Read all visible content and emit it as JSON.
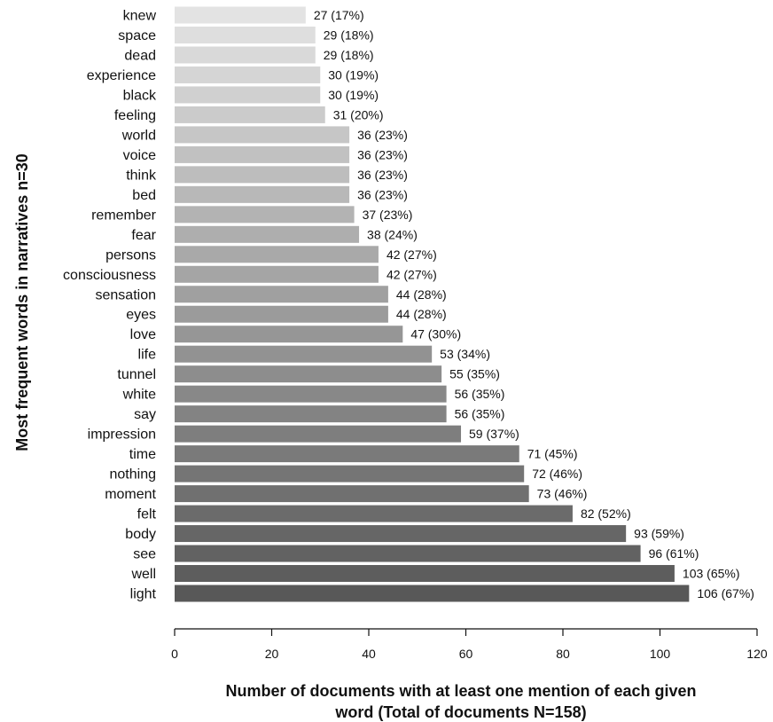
{
  "chart_data": {
    "type": "bar",
    "orientation": "horizontal",
    "categories": [
      "knew",
      "space",
      "dead",
      "experience",
      "black",
      "feeling",
      "world",
      "voice",
      "think",
      "bed",
      "remember",
      "fear",
      "persons",
      "consciousness",
      "sensation",
      "eyes",
      "love",
      "life",
      "tunnel",
      "white",
      "say",
      "impression",
      "time",
      "nothing",
      "moment",
      "felt",
      "body",
      "see",
      "well",
      "light"
    ],
    "values": [
      27,
      29,
      29,
      30,
      30,
      31,
      36,
      36,
      36,
      36,
      37,
      38,
      42,
      42,
      44,
      44,
      47,
      53,
      55,
      56,
      56,
      59,
      71,
      72,
      73,
      82,
      93,
      96,
      103,
      106
    ],
    "value_labels": [
      "27",
      "29",
      "29",
      "30",
      "30",
      "31",
      "36",
      "36",
      "36",
      "36",
      "37",
      "38",
      "42",
      "42",
      "44",
      "44",
      "47",
      "53",
      "55",
      "56",
      "56",
      "59",
      "71",
      "72",
      "73",
      "82",
      "93",
      "96",
      "103",
      "106"
    ],
    "percent_labels": [
      "(17%)",
      "(18%)",
      "(18%)",
      "(19%)",
      "(19%)",
      "(20%)",
      "(23%)",
      "(23%)",
      "(23%)",
      "(23%)",
      "(23%)",
      "(24%)",
      "(27%)",
      "(27%)",
      "(28%)",
      "(28%)",
      "(30%)",
      "(34%)",
      "(35%)",
      "(35%)",
      "(35%)",
      "(37%)",
      "(45%)",
      "(46%)",
      "(46%)",
      "(52%)",
      "(59%)",
      "(61%)",
      "(65%)",
      "(67%)"
    ],
    "xlim": [
      0,
      120
    ],
    "xticks": [
      "0",
      "20",
      "40",
      "60",
      "80",
      "100",
      "120"
    ],
    "xlabel_line1": "Number of documents with at least one mention of each given",
    "xlabel_line2": "word (Total of documents N=158)",
    "ylabel": "Most frequent words in narratives n=30",
    "grid": false,
    "bar_color_light": "#e3e3e3",
    "bar_color_dark": "#585858"
  }
}
